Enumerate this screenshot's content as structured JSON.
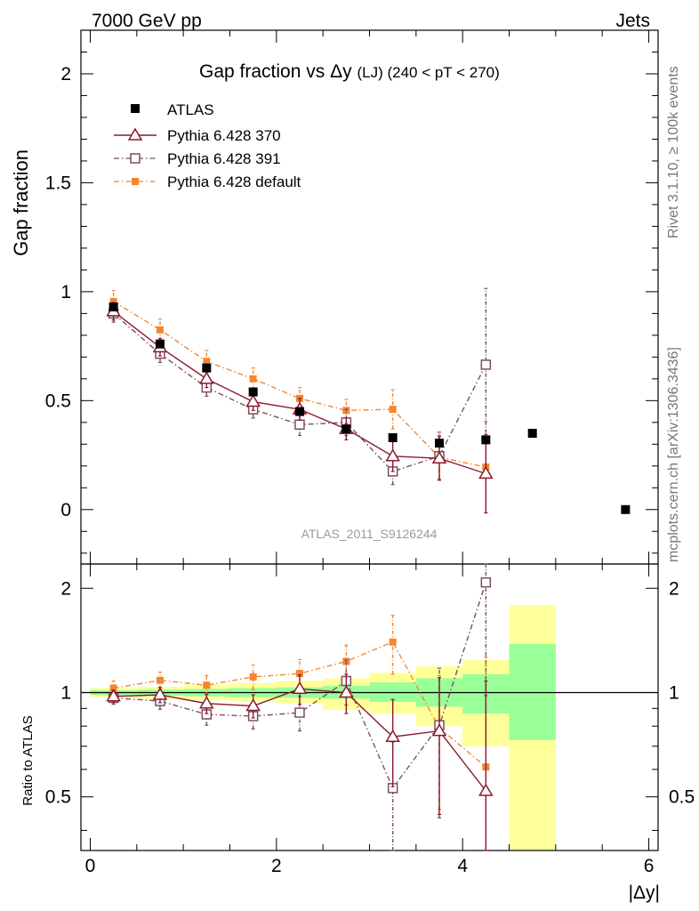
{
  "header": {
    "energy_label": "7000 GeV pp",
    "process_label": "Jets"
  },
  "side": {
    "rivet_label": "Rivet 3.1.10, ≥ 100k events",
    "source_label": "mcplots.cern.ch [arXiv:1306.3436]"
  },
  "colors": {
    "atlas": "#000000",
    "py370": "#8b1a2b",
    "py391": "#7a4f5f",
    "pydef": "#f5852f",
    "band_green": "#99ff99",
    "band_yellow": "#ffff99"
  },
  "chart_data": [
    {
      "type": "scatter",
      "title_main": "Gap fraction vs",
      "title_delta": "Δy",
      "title_sub": "(LJ) (240 < pT < 270)",
      "ylabel": "Gap fraction",
      "ylim": [
        -0.25,
        2.2
      ],
      "yticks": [
        0,
        0.5,
        1,
        1.5,
        2
      ],
      "ytick_labels": [
        "0",
        "0.5",
        "1",
        "1.5",
        "2"
      ],
      "xlim": [
        -0.1,
        6.1
      ],
      "watermark": "ATLAS_2011_S9126244",
      "legend": [
        "ATLAS",
        "Pythia 6.428 370",
        "Pythia 6.428 391",
        "Pythia 6.428 default"
      ],
      "series": [
        {
          "name": "ATLAS",
          "x": [
            0.25,
            0.75,
            1.25,
            1.75,
            2.25,
            2.75,
            3.25,
            3.75,
            4.25,
            4.75,
            5.75
          ],
          "y": [
            0.93,
            0.76,
            0.65,
            0.54,
            0.45,
            0.37,
            0.33,
            0.305,
            0.32,
            0.35,
            0.0
          ]
        },
        {
          "name": "Pythia 6.428 370",
          "x": [
            0.25,
            0.75,
            1.25,
            1.75,
            2.25,
            2.75,
            3.25,
            3.75,
            4.25
          ],
          "y": [
            0.91,
            0.745,
            0.6,
            0.495,
            0.46,
            0.37,
            0.245,
            0.235,
            0.165
          ],
          "err": [
            0.04,
            0.04,
            0.04,
            0.04,
            0.05,
            0.05,
            0.07,
            0.1,
            0.18
          ]
        },
        {
          "name": "Pythia 6.428 391",
          "x": [
            0.25,
            0.75,
            1.25,
            1.75,
            2.25,
            2.75,
            3.25,
            3.75,
            4.25
          ],
          "y": [
            0.9,
            0.715,
            0.56,
            0.46,
            0.39,
            0.4,
            0.175,
            0.245,
            0.665
          ],
          "err": [
            0.04,
            0.04,
            0.04,
            0.04,
            0.05,
            0.06,
            0.06,
            0.11,
            0.35
          ]
        },
        {
          "name": "Pythia 6.428 default",
          "x": [
            0.25,
            0.75,
            1.25,
            1.75,
            2.25,
            2.75,
            3.25,
            3.75,
            4.25
          ],
          "y": [
            0.955,
            0.825,
            0.68,
            0.6,
            0.51,
            0.455,
            0.46,
            0.24,
            0.195
          ],
          "err": [
            0.05,
            0.05,
            0.05,
            0.05,
            0.05,
            0.05,
            0.09,
            0.1,
            0.21
          ]
        }
      ]
    },
    {
      "type": "scatter",
      "ylabel": "Ratio to ATLAS",
      "xlabel": "|Δy|",
      "xlim": [
        -0.1,
        6.1
      ],
      "ylim": [
        0.35,
        2.35
      ],
      "yticks": [
        0.5,
        1,
        2
      ],
      "ytick_labels": [
        "0.5",
        "1",
        "2"
      ],
      "xticks": [
        0,
        2,
        4,
        6
      ],
      "xtick_labels": [
        "0",
        "2",
        "4",
        "6"
      ],
      "bands": {
        "edges": [
          0.0,
          0.5,
          1.0,
          1.5,
          2.0,
          2.5,
          3.0,
          3.5,
          4.0,
          4.5,
          5.0
        ],
        "green_lo": [
          0.985,
          0.98,
          0.975,
          0.97,
          0.965,
          0.96,
          0.94,
          0.91,
          0.87,
          0.73
        ],
        "green_hi": [
          1.015,
          1.02,
          1.025,
          1.03,
          1.035,
          1.045,
          1.07,
          1.1,
          1.13,
          1.38
        ],
        "yellow_lo": [
          0.97,
          0.96,
          0.95,
          0.94,
          0.93,
          0.89,
          0.87,
          0.8,
          0.7,
          0.35
        ],
        "yellow_hi": [
          1.03,
          1.04,
          1.055,
          1.065,
          1.08,
          1.1,
          1.14,
          1.19,
          1.24,
          1.79
        ]
      },
      "series": [
        {
          "name": "Pythia 6.428 370",
          "x": [
            0.25,
            0.75,
            1.25,
            1.75,
            2.25,
            2.75,
            3.25,
            3.75,
            4.25
          ],
          "y": [
            0.975,
            0.985,
            0.93,
            0.915,
            1.025,
            1.0,
            0.745,
            0.775,
            0.52
          ],
          "err": [
            0.04,
            0.05,
            0.06,
            0.07,
            0.1,
            0.13,
            0.21,
            0.33,
            0.56
          ]
        },
        {
          "name": "Pythia 6.428 391",
          "x": [
            0.25,
            0.75,
            1.25,
            1.75,
            2.25,
            2.75,
            3.25,
            3.75,
            4.25
          ],
          "y": [
            0.965,
            0.945,
            0.865,
            0.855,
            0.875,
            1.08,
            0.53,
            0.805,
            2.08
          ],
          "err": [
            0.04,
            0.05,
            0.06,
            0.07,
            0.1,
            0.16,
            0.19,
            0.37,
            1.1
          ]
        },
        {
          "name": "Pythia 6.428 default",
          "x": [
            0.25,
            0.75,
            1.25,
            1.75,
            2.25,
            2.75,
            3.25,
            3.75,
            4.25
          ],
          "y": [
            1.03,
            1.085,
            1.05,
            1.11,
            1.135,
            1.23,
            1.4,
            0.79,
            0.61
          ],
          "err": [
            0.05,
            0.06,
            0.07,
            0.09,
            0.11,
            0.14,
            0.27,
            0.33,
            0.66
          ]
        }
      ]
    }
  ]
}
